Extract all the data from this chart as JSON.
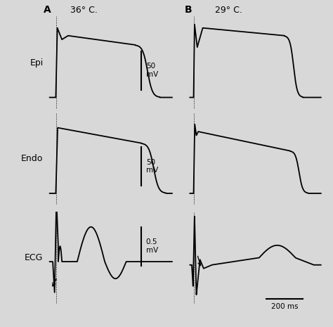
{
  "fig_width": 4.74,
  "fig_height": 4.65,
  "dpi": 100,
  "bg_color": "#d8d8d8",
  "temp_A": "36° C.",
  "temp_B": "29° C.",
  "label_epi": "Epi",
  "label_endo": "Endo",
  "label_ecg": "ECG",
  "panel_A": "A",
  "panel_B": "B",
  "scale_bar_ms": "200 ms",
  "scale_epi_mv": "50\nmV",
  "scale_endo_mv": "50\nmV",
  "scale_ecg_mv": "0.5\nmV",
  "line_color": "#000000",
  "line_width": 1.3
}
